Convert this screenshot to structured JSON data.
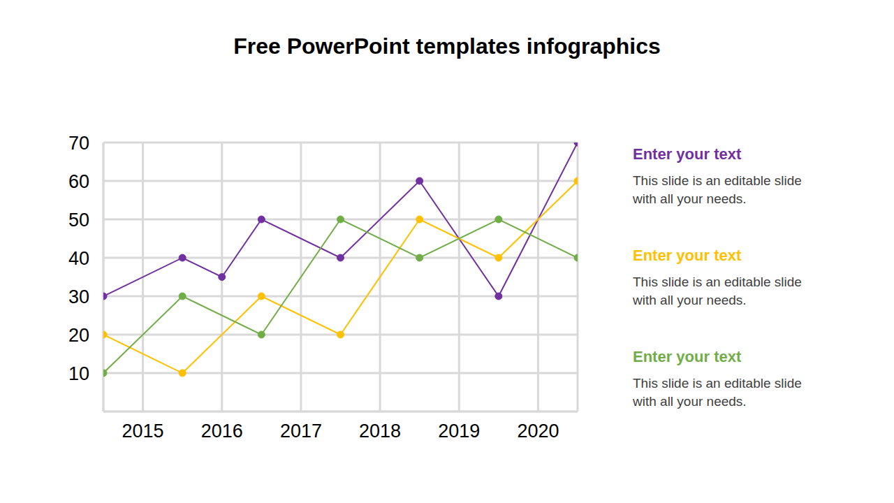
{
  "chart_data": {
    "type": "line",
    "title": "Free PowerPoint templates infographics",
    "xlim": [
      2014.5,
      2020.5
    ],
    "xticks": [
      2015,
      2016,
      2017,
      2018,
      2019,
      2020
    ],
    "ylim": [
      0,
      70
    ],
    "yticks": [
      10,
      20,
      30,
      40,
      50,
      60,
      70
    ],
    "grid": true,
    "marker": "circle",
    "series": [
      {
        "name": "Enter your text",
        "color": "#7030a0",
        "x": [
          2014.5,
          2015.5,
          2016.0,
          2016.5,
          2017.5,
          2018.5,
          2019.5,
          2020.5
        ],
        "values": [
          30,
          40,
          35,
          50,
          40,
          60,
          30,
          70
        ]
      },
      {
        "name": "Enter your text",
        "color": "#ffc000",
        "x": [
          2014.5,
          2015.5,
          2016.5,
          2017.5,
          2018.5,
          2019.5,
          2020.5
        ],
        "values": [
          20,
          10,
          30,
          20,
          50,
          40,
          60
        ]
      },
      {
        "name": "Enter your text",
        "color": "#70ad47",
        "x": [
          2014.5,
          2015.5,
          2016.5,
          2017.5,
          2018.5,
          2019.5,
          2020.5
        ],
        "values": [
          10,
          30,
          20,
          50,
          40,
          50,
          40
        ]
      }
    ],
    "annotations": [
      {
        "title": "Enter your text",
        "text": "This slide is an editable slide with all your needs.",
        "color": "#7030a0"
      },
      {
        "title": "Enter your text",
        "text": "This slide is an editable slide with all your needs.",
        "color": "#ffc000"
      },
      {
        "title": "Enter your text",
        "text": "This slide is an editable slide with all your needs.",
        "color": "#70ad47"
      }
    ]
  }
}
